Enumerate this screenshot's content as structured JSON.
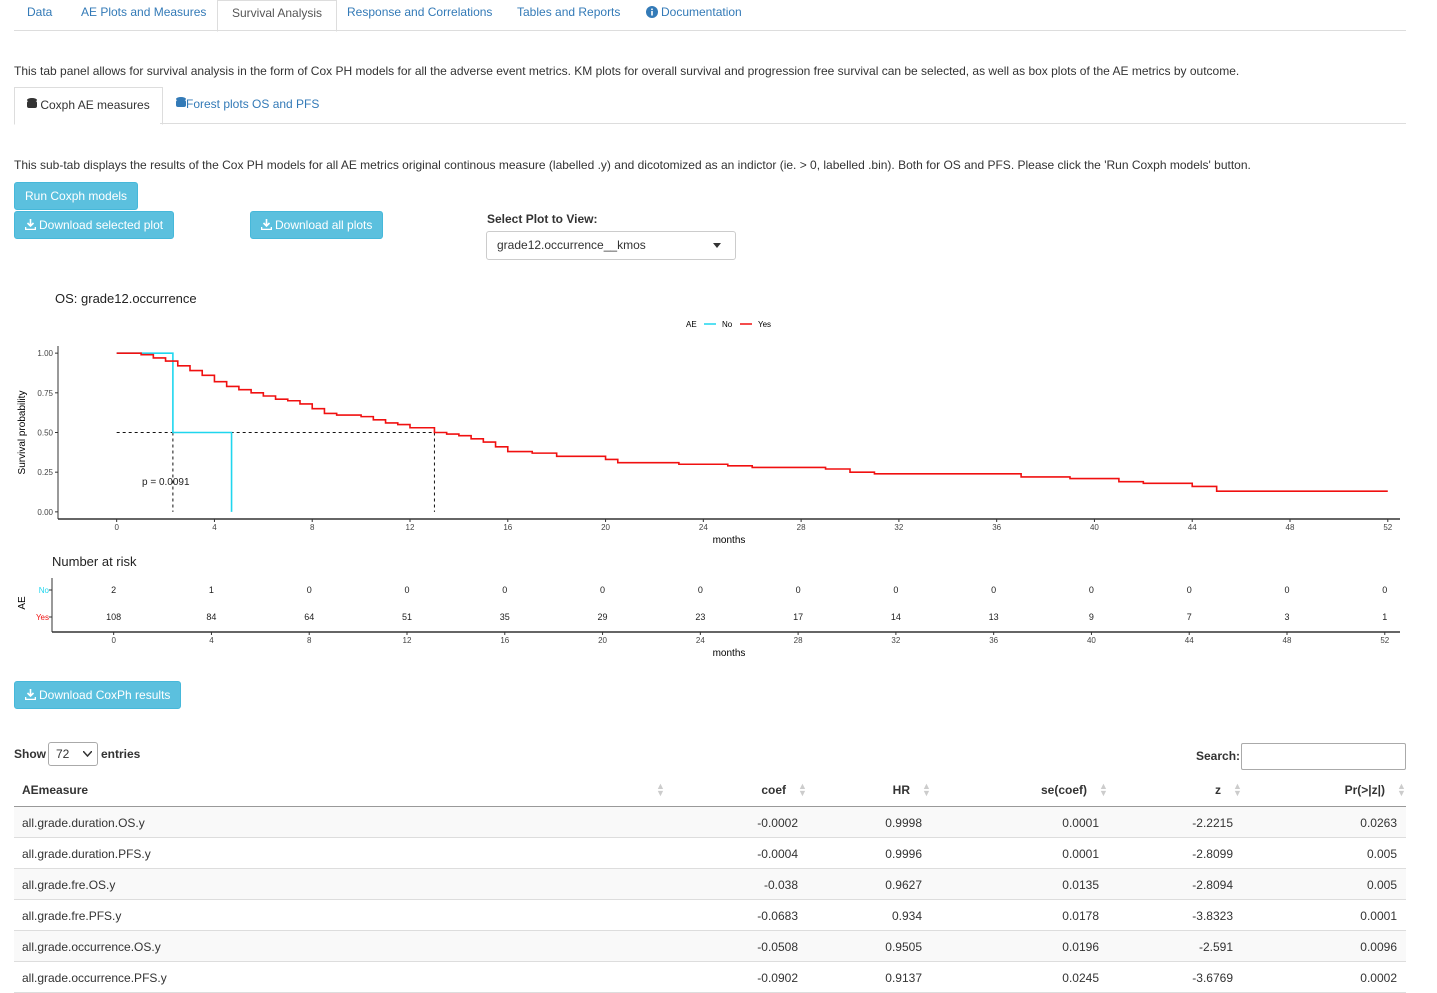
{
  "nav_tabs": [
    "Data",
    "AE Plots and Measures",
    "Survival Analysis",
    "Response and Correlations",
    "Tables and Reports",
    "Documentation"
  ],
  "intro": "This tab panel allows for survival analysis in the form of Cox PH models for all the adverse event metrics. KM plots for overall survival and progression free survival can be selected, as well as box plots of the AE metrics by outcome.",
  "sub_tabs": [
    "Coxph AE measures",
    "Forest plots OS and PFS"
  ],
  "sub_intro": "This sub-tab displays the results of the Cox PH models for all AE metrics original continous measure (labelled .y) and dicotomized as an indictor (ie. > 0, labelled .bin). Both for OS and PFS. Please click the 'Run Coxph models' button.",
  "buttons": {
    "run": "Run Coxph models",
    "download_selected": "Download selected plot",
    "download_all": "Download all plots",
    "download_results": "Download CoxPh results"
  },
  "select": {
    "label": "Select Plot to View:",
    "value": "grade12.occurrence__kmos"
  },
  "chart_data": {
    "type": "line",
    "title": "OS:  grade12.occurrence",
    "x_label": "months",
    "y_label": "Survival probability",
    "legend_title": "AE",
    "annotation": "p = 0.0091",
    "xlim": [
      -2.4,
      52.5
    ],
    "ylim": [
      -0.045,
      1.045
    ],
    "xticks": [
      0,
      4,
      8,
      12,
      16,
      20,
      24,
      28,
      32,
      36,
      40,
      44,
      48,
      52
    ],
    "yticks": [
      {
        "value": 1,
        "label": "1.00"
      },
      {
        "value": 0.75,
        "label": "0.75"
      },
      {
        "value": 0.5,
        "label": "0.50"
      },
      {
        "value": 0.25,
        "label": "0.25"
      },
      {
        "value": 0,
        "label": "0.00"
      }
    ],
    "series": [
      {
        "name": "No",
        "color": "#1fd6ee",
        "x": [
          0,
          2.3,
          4.7
        ],
        "values": [
          1,
          0.5,
          0
        ]
      },
      {
        "name": "Yes",
        "color": "#f01010",
        "x": [
          0,
          1,
          1.5,
          2,
          2.5,
          3,
          3.5,
          4,
          4.5,
          5,
          5.5,
          6,
          6.5,
          7,
          7.5,
          8,
          8.5,
          9,
          10,
          10.5,
          11,
          11.5,
          12,
          13,
          13.5,
          14,
          14.5,
          15,
          15.5,
          16,
          17,
          18,
          20,
          20.5,
          23,
          25,
          26,
          29,
          30,
          31,
          37,
          39,
          41,
          42,
          44,
          45,
          52
        ],
        "values": [
          1,
          0.99,
          0.97,
          0.95,
          0.92,
          0.89,
          0.86,
          0.82,
          0.79,
          0.77,
          0.75,
          0.73,
          0.71,
          0.7,
          0.68,
          0.65,
          0.62,
          0.61,
          0.6,
          0.58,
          0.56,
          0.55,
          0.53,
          0.5,
          0.49,
          0.48,
          0.46,
          0.44,
          0.41,
          0.38,
          0.37,
          0.35,
          0.33,
          0.31,
          0.3,
          0.29,
          0.28,
          0.27,
          0.25,
          0.24,
          0.22,
          0.21,
          0.19,
          0.18,
          0.16,
          0.13,
          0.13
        ]
      }
    ],
    "risk_table": {
      "title": "Number at risk",
      "y_label": "AE",
      "x_label": "months",
      "counts": [
        {
          "name": "No",
          "values": [
            2,
            1,
            0,
            0,
            0,
            0,
            0,
            0,
            0,
            0,
            0,
            0,
            0,
            0
          ]
        },
        {
          "name": "Yes",
          "values": [
            108,
            84,
            64,
            51,
            35,
            29,
            23,
            17,
            14,
            13,
            9,
            7,
            3,
            1
          ]
        }
      ]
    }
  },
  "table": {
    "show": "Show",
    "entries_value": "72",
    "entries": "entries",
    "search": "Search:",
    "columns": [
      "AEmeasure",
      "coef",
      "HR",
      "se(coef)",
      "z",
      "Pr(>|z|)"
    ],
    "rows": [
      [
        "all.grade.duration.OS.y",
        "-0.0002",
        "0.9998",
        "0.0001",
        "-2.2215",
        "0.0263"
      ],
      [
        "all.grade.duration.PFS.y",
        "-0.0004",
        "0.9996",
        "0.0001",
        "-2.8099",
        "0.005"
      ],
      [
        "all.grade.fre.OS.y",
        "-0.038",
        "0.9627",
        "0.0135",
        "-2.8094",
        "0.005"
      ],
      [
        "all.grade.fre.PFS.y",
        "-0.0683",
        "0.934",
        "0.0178",
        "-3.8323",
        "0.0001"
      ],
      [
        "all.grade.occurrence.OS.y",
        "-0.0508",
        "0.9505",
        "0.0196",
        "-2.591",
        "0.0096"
      ],
      [
        "all.grade.occurrence.PFS.y",
        "-0.0902",
        "0.9137",
        "0.0245",
        "-3.6769",
        "0.0002"
      ]
    ]
  }
}
